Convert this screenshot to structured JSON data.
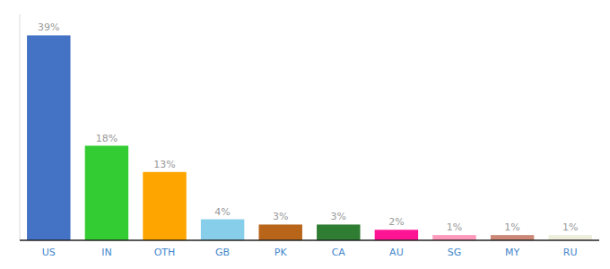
{
  "chart_data": {
    "type": "bar",
    "categories": [
      "US",
      "IN",
      "OTH",
      "GB",
      "PK",
      "CA",
      "AU",
      "SG",
      "MY",
      "RU"
    ],
    "values": [
      39,
      18,
      13,
      4,
      3,
      3,
      2,
      1,
      1,
      1
    ],
    "value_labels": [
      "39%",
      "18%",
      "13%",
      "4%",
      "3%",
      "3%",
      "2%",
      "1%",
      "1%",
      "1%"
    ],
    "colors": [
      "#4472c4",
      "#33cc33",
      "#ffa500",
      "#87ceeb",
      "#b8651a",
      "#2e7d32",
      "#ff1493",
      "#ff99bb",
      "#cc8877",
      "#eeeedd"
    ],
    "ylim": [
      0,
      43
    ],
    "data_labels": true,
    "tick_labels": "x",
    "grid": false
  }
}
